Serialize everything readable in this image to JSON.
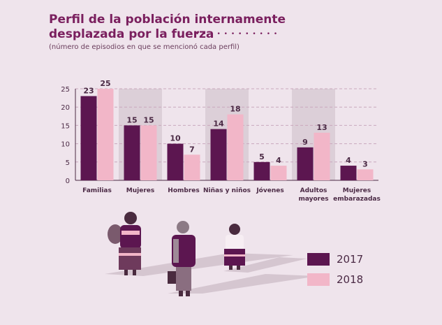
{
  "colors": {
    "s2017": "#5c1650",
    "s2018": "#f2b6c8",
    "band": "#dccfd8",
    "axis": "#4b2a45",
    "grid": "#c9a8bd"
  },
  "chart_data": {
    "type": "bar",
    "title": "Perfil de la población internamente desplazada por la fuerza",
    "title_lines": [
      "Perfil de la población internamente",
      "desplazada por la fuerza"
    ],
    "subtitle": "(número de episodios en que se mencionó cada perfil)",
    "categories": [
      [
        "Familias"
      ],
      [
        "Mujeres"
      ],
      [
        "Hombres"
      ],
      [
        "Niñas y niños"
      ],
      [
        "Jóvenes"
      ],
      [
        "Adultos",
        "mayores"
      ],
      [
        "Mujeres",
        "embarazadas"
      ]
    ],
    "series": [
      {
        "name": "2017",
        "values": [
          23,
          15,
          10,
          14,
          5,
          9,
          4
        ]
      },
      {
        "name": "2018",
        "values": [
          25,
          15,
          7,
          18,
          4,
          13,
          3
        ]
      }
    ],
    "yticks": [
      0,
      5,
      10,
      15,
      20,
      25
    ],
    "ylim": [
      0,
      25
    ],
    "grid": true,
    "legend_position": "bottom-right"
  },
  "decor": {
    "dots": "• • • • • • • • • • • •"
  }
}
